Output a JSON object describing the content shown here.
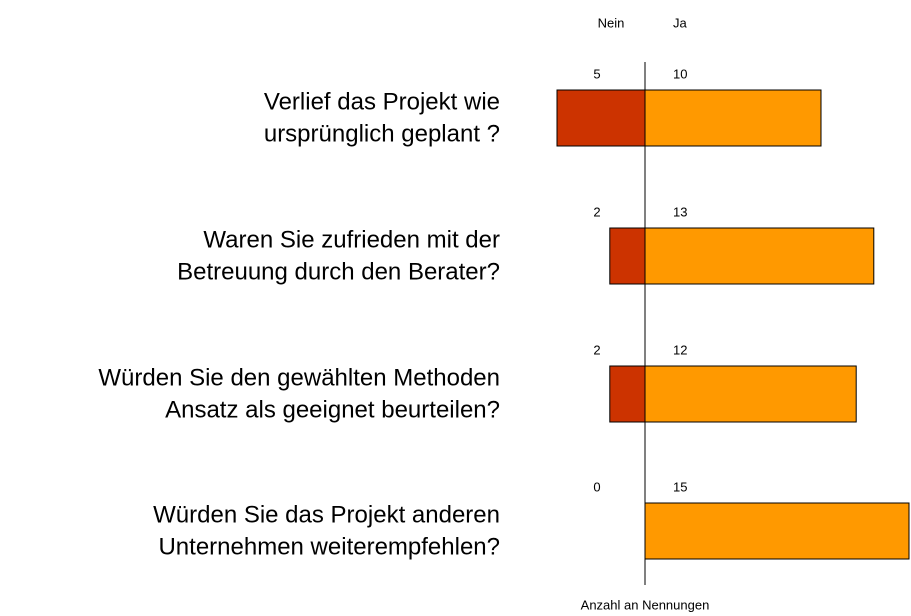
{
  "chart_data": {
    "type": "diverging_bar",
    "categories": [
      [
        "Verlief das Projekt wie",
        "ursprünglich geplant ?"
      ],
      [
        "Waren Sie zufrieden mit der",
        "Betreuung durch den Berater?"
      ],
      [
        "Würden Sie den gewählten Methoden",
        "Ansatz als geeignet beurteilen?"
      ],
      [
        "Würden Sie das Projekt anderen",
        "Unternehmen weiterempfehlen?"
      ]
    ],
    "series": [
      {
        "name": "Nein",
        "color": "#cc3300",
        "values": [
          5,
          2,
          2,
          0
        ]
      },
      {
        "name": "Ja",
        "color": "#ff9900",
        "values": [
          10,
          13,
          12,
          15
        ]
      }
    ],
    "xlabel": "Anzahl an Nennungen"
  }
}
